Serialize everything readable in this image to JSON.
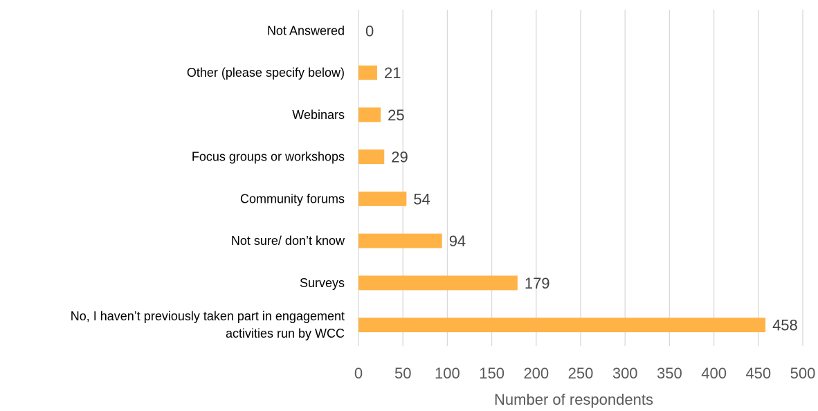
{
  "chart_data": {
    "type": "bar",
    "orientation": "horizontal",
    "categories": [
      "No, I haven’t previously taken part in engagement activities run by WCC",
      "Surveys",
      "Not sure/ don’t know",
      "Community forums",
      "Focus groups or workshops",
      "Webinars",
      "Other (please specify below)",
      "Not Answered"
    ],
    "category_lines": [
      [
        "No, I haven’t previously taken part in engagement",
        "activities run by WCC"
      ],
      [
        "Surveys"
      ],
      [
        "Not sure/ don’t know"
      ],
      [
        "Community forums"
      ],
      [
        "Focus groups or workshops"
      ],
      [
        "Webinars"
      ],
      [
        "Other (please specify below)"
      ],
      [
        "Not Answered"
      ]
    ],
    "values": [
      458,
      179,
      94,
      54,
      29,
      25,
      21,
      0
    ],
    "xlabel": "Number of respondents",
    "ylabel": "",
    "title": "",
    "xlim": [
      0,
      500
    ],
    "xticks": [
      0,
      50,
      100,
      150,
      200,
      250,
      300,
      350,
      400,
      450,
      500
    ],
    "grid": "vertical",
    "legend": "none",
    "data_labels": true
  },
  "colors": {
    "bar": "#FFB347",
    "grid": "#D9D9D9",
    "category_text": "#000000",
    "tick_text": "#595959",
    "data_label_text": "#404040"
  }
}
